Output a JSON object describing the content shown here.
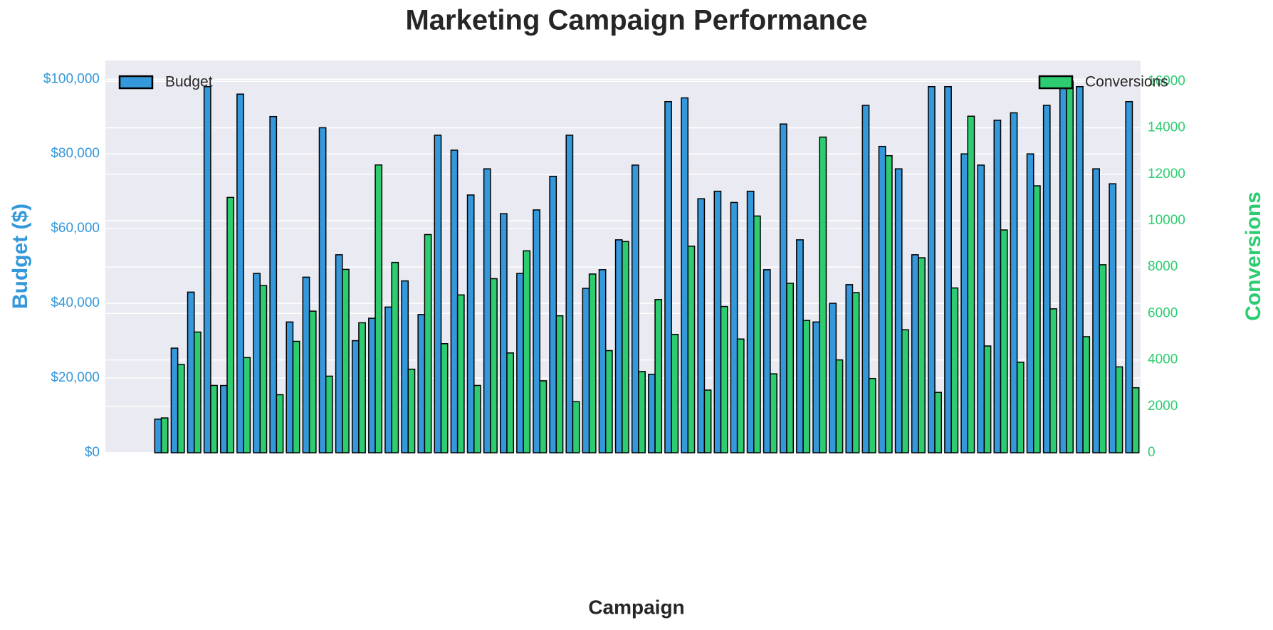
{
  "chart_data": {
    "type": "bar",
    "title": "Marketing Campaign Performance",
    "xlabel": "Campaign",
    "ylabel": "Budget ($)",
    "y2label": "Conversions",
    "categories": [
      null,
      null,
      null,
      null,
      null,
      null,
      null,
      null,
      null,
      null,
      null,
      null,
      null,
      null,
      null,
      null,
      null,
      null,
      null,
      null,
      null,
      null,
      null,
      null,
      null,
      null,
      null,
      null,
      null,
      null,
      null,
      null,
      null,
      null,
      null,
      null,
      null,
      null,
      null,
      null,
      null,
      null,
      null,
      null,
      null,
      null,
      null,
      null,
      null,
      null,
      null,
      null,
      null,
      null,
      null,
      null,
      null,
      null,
      null,
      null
    ],
    "series": [
      {
        "name": "Budget",
        "color": "#3498db",
        "axis": "y",
        "values": [
          9000,
          28000,
          43000,
          98000,
          18000,
          96000,
          48000,
          90000,
          35000,
          47000,
          87000,
          53000,
          30000,
          36000,
          39000,
          46000,
          37000,
          85000,
          81000,
          69000,
          76000,
          64000,
          48000,
          65000,
          74000,
          85000,
          44000,
          49000,
          57000,
          77000,
          21000,
          94000,
          95000,
          68000,
          70000,
          67000,
          70000,
          49000,
          88000,
          57000,
          35000,
          40000,
          45000,
          93000,
          82000,
          76000,
          53000,
          98000,
          98000,
          80000,
          77000,
          89000,
          91000,
          80000,
          93000,
          99000,
          98000,
          76000,
          72000,
          94000
        ]
      },
      {
        "name": "Conversions",
        "color": "#2ecc71",
        "axis": "y2",
        "values": [
          1500,
          3800,
          5200,
          2900,
          11000,
          4100,
          7200,
          2500,
          4800,
          6100,
          3300,
          7900,
          5600,
          12400,
          8200,
          3600,
          9400,
          4700,
          6800,
          2900,
          7500,
          4300,
          8700,
          3100,
          5900,
          2200,
          7700,
          4400,
          9100,
          3500,
          6600,
          5100,
          8900,
          2700,
          6300,
          4900,
          10200,
          3400,
          7300,
          5700,
          13600,
          4000,
          6900,
          3200,
          12800,
          5300,
          8400,
          2600,
          7100,
          14500,
          4600,
          9600,
          3900,
          11500,
          6200,
          16000,
          5000,
          8100,
          3700,
          2800
        ]
      }
    ],
    "ylim": [
      0,
      105000
    ],
    "yticks": [
      {
        "value": 0,
        "label": "$0"
      },
      {
        "value": 20000,
        "label": "$20,000"
      },
      {
        "value": 40000,
        "label": "$40,000"
      },
      {
        "value": 60000,
        "label": "$60,000"
      },
      {
        "value": 80000,
        "label": "$80,000"
      },
      {
        "value": 100000,
        "label": "$100,000"
      }
    ],
    "y2lim": [
      0,
      16900
    ],
    "y2ticks": [
      0,
      2000,
      4000,
      6000,
      8000,
      10000,
      12000,
      14000,
      16000
    ],
    "grid": true
  }
}
